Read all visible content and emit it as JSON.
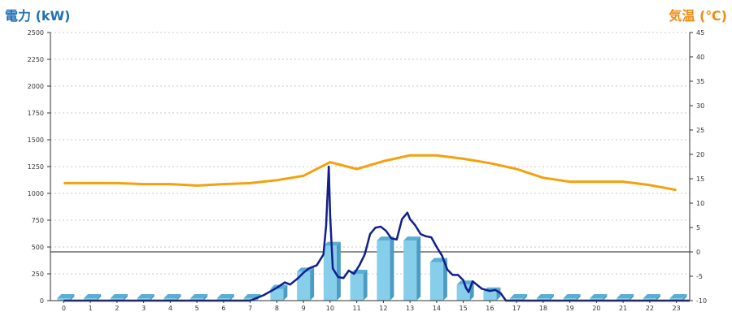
{
  "chart_data": {
    "type": "bar+line",
    "ylabel_left": "電力 (kW)",
    "ylabel_right": "気温 (℃)",
    "categories": [
      "0",
      "1",
      "2",
      "3",
      "4",
      "5",
      "6",
      "7",
      "8",
      "9",
      "10",
      "11",
      "12",
      "13",
      "14",
      "15",
      "16",
      "17",
      "18",
      "19",
      "20",
      "21",
      "22",
      "23"
    ],
    "y_left_ticks": [
      "0",
      "250",
      "500",
      "750",
      "1000",
      "1250",
      "1500",
      "1750",
      "2000",
      "2250",
      "2500"
    ],
    "y_left_range": [
      0,
      2500
    ],
    "y_right_ticks": [
      "-10",
      "-5",
      "0",
      "5",
      "10",
      "15",
      "20",
      "25",
      "30",
      "35",
      "40",
      "45"
    ],
    "y_right_range": [
      -10,
      45
    ],
    "grid": true,
    "bar_series": {
      "name": "",
      "color": "#87ceeb",
      "values": [
        0,
        0,
        0,
        0,
        0,
        0,
        0,
        5,
        110,
        270,
        510,
        250,
        560,
        560,
        360,
        150,
        85,
        0,
        0,
        0,
        0,
        0,
        0,
        0
      ]
    },
    "temperature_series": {
      "name": "",
      "color": "#f5a00d",
      "values": [
        14.1,
        14.1,
        14.1,
        13.9,
        13.9,
        13.6,
        13.9,
        14.1,
        14.7,
        15.6,
        18.4,
        17.0,
        18.6,
        19.8,
        19.8,
        19.1,
        18.2,
        17.0,
        15.2,
        14.4,
        14.4,
        14.4,
        13.7,
        12.7
      ]
    },
    "power_line_series": {
      "name": "",
      "color": "#0f1f8c",
      "x": [
        0,
        6.5,
        7,
        7.5,
        8,
        8.3,
        8.5,
        8.8,
        9.0,
        9.2,
        9.5,
        9.75,
        9.85,
        9.95,
        10.0,
        10.1,
        10.3,
        10.5,
        10.7,
        10.9,
        11.1,
        11.3,
        11.5,
        11.7,
        11.9,
        12.1,
        12.3,
        12.5,
        12.7,
        12.9,
        13.0,
        13.2,
        13.4,
        13.6,
        13.8,
        14.0,
        14.2,
        14.4,
        14.6,
        14.8,
        15.0,
        15.1,
        15.2,
        15.35,
        15.5,
        15.7,
        16.0,
        16.2,
        16.4,
        16.6,
        23.5
      ],
      "y": [
        0,
        0,
        0,
        50,
        120,
        170,
        150,
        210,
        260,
        300,
        330,
        430,
        700,
        1250,
        800,
        300,
        220,
        210,
        280,
        250,
        330,
        430,
        620,
        680,
        690,
        650,
        580,
        570,
        760,
        820,
        760,
        700,
        620,
        600,
        590,
        500,
        420,
        290,
        240,
        240,
        190,
        120,
        80,
        180,
        150,
        110,
        90,
        100,
        70,
        0,
        0
      ]
    },
    "horizontal_reference_line": {
      "axis": "right",
      "value": 0
    }
  }
}
